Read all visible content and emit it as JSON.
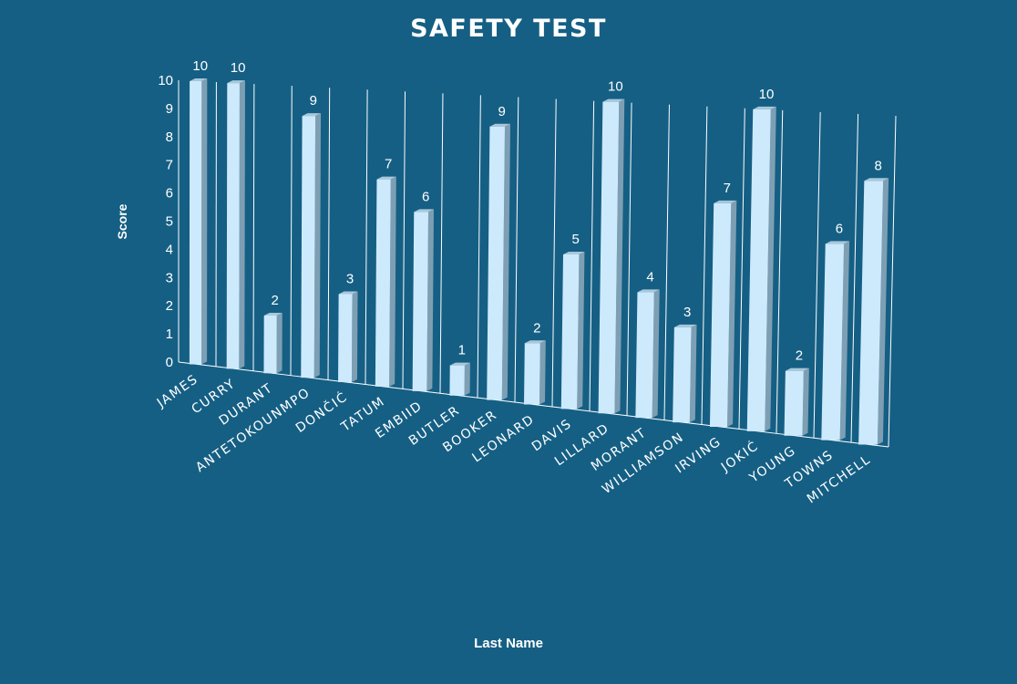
{
  "chart_data": {
    "type": "bar",
    "title": "SAFETY TEST",
    "xlabel": "Last Name",
    "ylabel": "Score",
    "ylim": [
      0,
      10
    ],
    "yticks": [
      0,
      1,
      2,
      3,
      4,
      5,
      6,
      7,
      8,
      9,
      10
    ],
    "categories": [
      "JAMES",
      "CURRY",
      "DURANT",
      "ANTETOKOUNMPO",
      "DONČIĆ",
      "TATUM",
      "EMBIID",
      "BUTLER",
      "BOOKER",
      "LEONARD",
      "DAVIS",
      "LILLARD",
      "MORANT",
      "WILLIAMSON",
      "IRVING",
      "JOKIĆ",
      "YOUNG",
      "TOWNS",
      "MITCHELL"
    ],
    "values": [
      10,
      10,
      2,
      9,
      3,
      7,
      6,
      1,
      9,
      2,
      5,
      10,
      4,
      3,
      7,
      10,
      2,
      6,
      8
    ],
    "grid": true,
    "legend": "none",
    "colors": {
      "background": "#155f84",
      "bar_front": "#cdeafd",
      "bar_side": "#7e9fb3",
      "bar_top": "#a9c8da",
      "gridline": "#ffffff",
      "text": "#ffffff"
    }
  }
}
